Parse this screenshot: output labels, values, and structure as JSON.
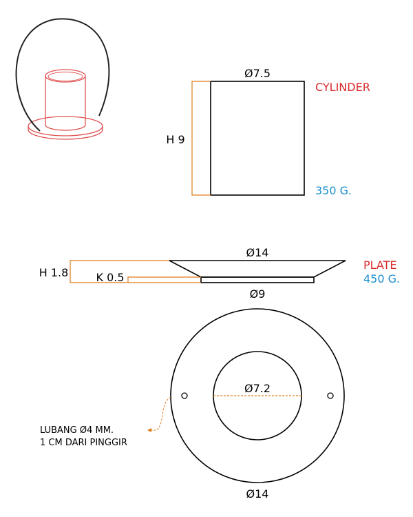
{
  "colors": {
    "line": "#000000",
    "dimension": "#e07b1c",
    "title": "#d92b2b",
    "weight": "#1a8fd0"
  },
  "cylinder": {
    "diameter_label": "Ø7.5",
    "height_label": "H 9",
    "title": "CYLINDER",
    "weight": "350 G."
  },
  "plate": {
    "top_diameter_label": "Ø14",
    "height_label": "H 1.8",
    "base_height_label": "K 0.5",
    "bottom_diameter_label": "Ø9",
    "title": "PLATE",
    "weight": "450 G."
  },
  "plate_top_view": {
    "inner_diameter_label": "Ø7.2",
    "outer_diameter_label": "Ø14",
    "hole_note_line1": "LUBANG Ø4 MM.",
    "hole_note_line2": "1 CM DARI PINGGIR"
  }
}
